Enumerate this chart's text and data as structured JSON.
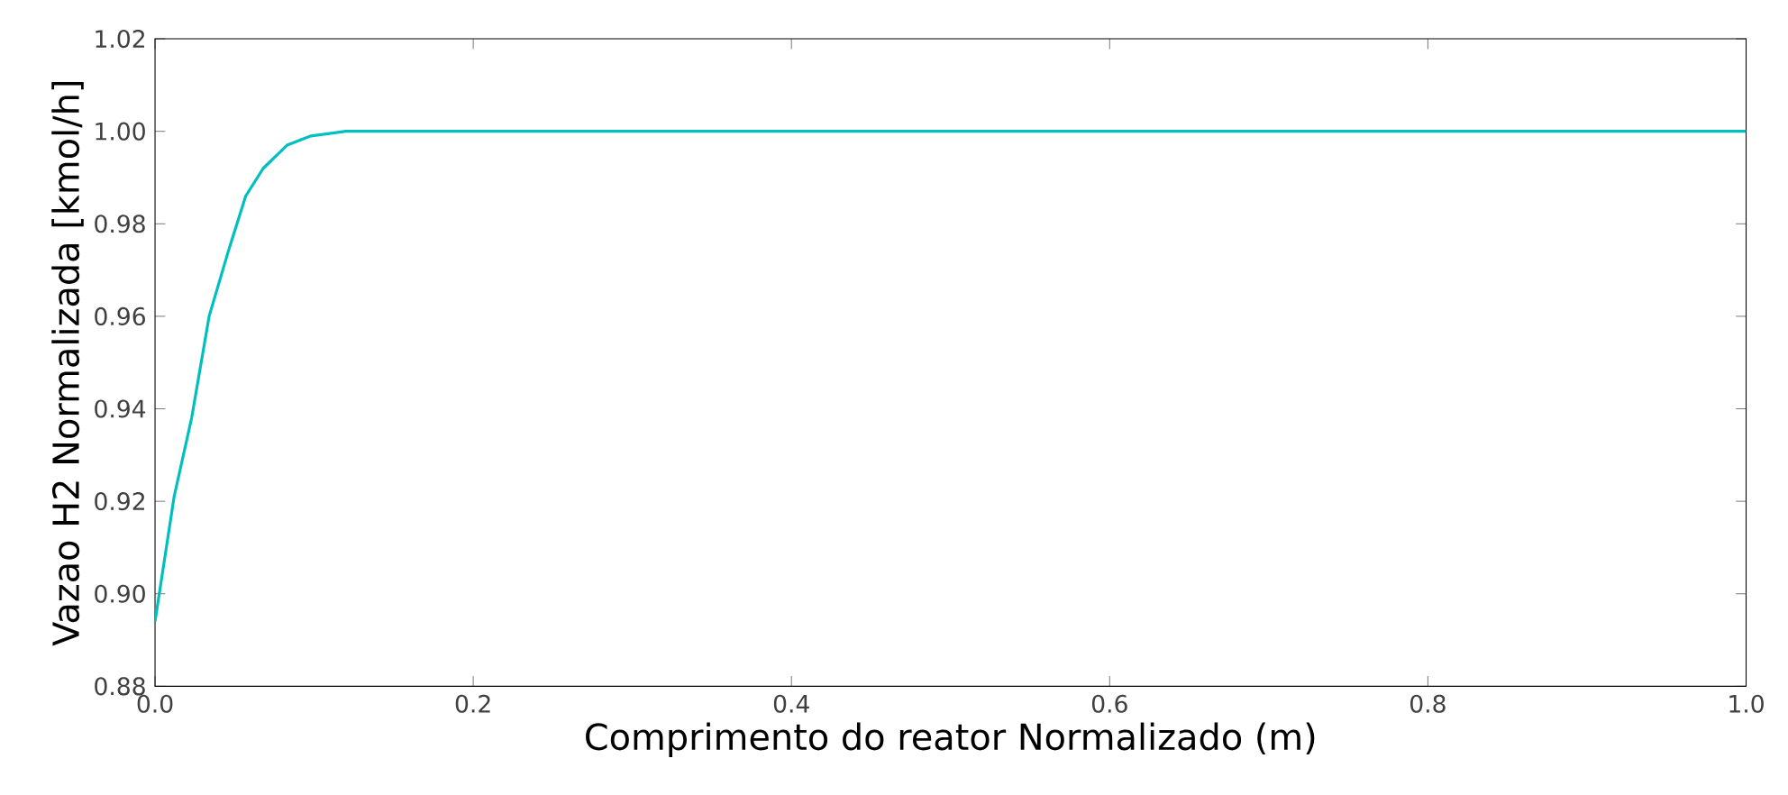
{
  "chart_data": {
    "type": "line",
    "xlabel": "Comprimento do reator Normalizado (m)",
    "ylabel": "Vazao H2 Normalizada [kmol/h]",
    "series": [
      {
        "color": "#00bfbf",
        "x": [
          0,
          0.012,
          0.023,
          0.034,
          0.046,
          0.057,
          0.068,
          0.083,
          0.098,
          0.12,
          0.2,
          0.4,
          0.6,
          0.8,
          1.0
        ],
        "values": [
          0.894,
          0.921,
          0.938,
          0.96,
          0.974,
          0.986,
          0.992,
          0.997,
          0.999,
          1.0,
          1.0,
          1.0,
          1.0,
          1.0,
          1.0
        ]
      }
    ],
    "xlim": [
      0,
      1
    ],
    "ylim": [
      0.88,
      1.02
    ],
    "xticks": [
      {
        "value": 0,
        "label": "0.0"
      },
      0.2,
      0.4,
      0.6,
      0.8,
      {
        "value": 1,
        "label": "1.0"
      }
    ],
    "yticks": [
      0.88,
      {
        "value": 0.9,
        "label": "0.90"
      },
      0.92,
      0.94,
      0.96,
      0.98,
      {
        "value": 1,
        "label": "1.00"
      },
      1.02
    ],
    "grid": false,
    "marker": "none",
    "line_style": "solid"
  }
}
